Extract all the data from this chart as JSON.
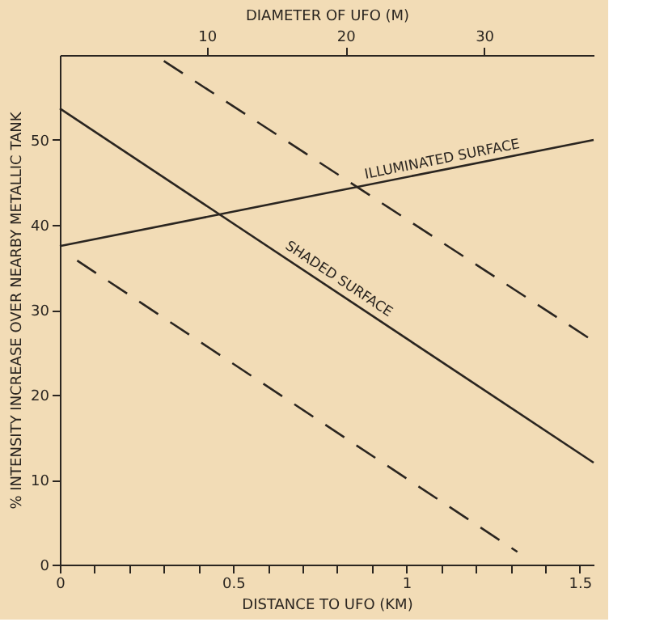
{
  "chart_data": {
    "type": "line",
    "xlabel": "DISTANCE TO UFO (KM)",
    "ylabel": "% INTENSITY INCREASE OVER NEARBY METALLIC TANK",
    "x2label": "DIAMETER OF UFO (M)",
    "series": [
      {
        "name": "ILLUMINATED SURFACE",
        "color": "#2a2520",
        "x": [
          0,
          1.54
        ],
        "values": [
          37.5,
          50
        ],
        "line_style": "solid"
      },
      {
        "name": "SHADED SURFACE",
        "color": "#2a2520",
        "x": [
          0,
          1.54
        ],
        "values": [
          53.7,
          12
        ],
        "line_style": "solid"
      },
      {
        "color": "#2a2520",
        "x": [
          0.3,
          1.54
        ],
        "values": [
          59.3,
          26.3
        ],
        "line_style": "dashed"
      },
      {
        "color": "#2a2520",
        "x": [
          0.05,
          1.32
        ],
        "values": [
          35.8,
          1.5
        ],
        "line_style": "dashed"
      }
    ],
    "xlim": [
      0,
      1.54
    ],
    "ylim": [
      0,
      60
    ],
    "x2lim": [
      -0.6,
      37.9
    ],
    "xticks": [
      0,
      {
        "value": 0.1,
        "label": null
      },
      {
        "value": 0.2,
        "label": null
      },
      {
        "value": 0.3,
        "label": null
      },
      {
        "value": 0.4,
        "label": null
      },
      0.5,
      {
        "value": 0.6,
        "label": null
      },
      {
        "value": 0.7,
        "label": null
      },
      {
        "value": 0.8,
        "label": null
      },
      {
        "value": 0.9,
        "label": null
      },
      1,
      {
        "value": 1.1,
        "label": null
      },
      {
        "value": 1.2,
        "label": null
      },
      {
        "value": 1.3,
        "label": null
      },
      {
        "value": 1.4,
        "label": null
      },
      1.5
    ],
    "yticks": [
      0,
      10,
      20,
      30,
      40,
      50
    ],
    "x2ticks": [
      10,
      20,
      30
    ],
    "grid": false,
    "legend": false,
    "marker": "none"
  }
}
